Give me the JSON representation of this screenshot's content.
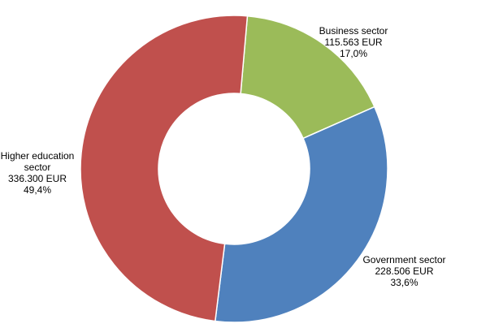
{
  "chart_data": {
    "type": "pie",
    "categories": [
      "Business sector",
      "Government sector",
      "Higher education sector"
    ],
    "values": [
      115563,
      228506,
      336300
    ],
    "value_labels": [
      "115.563 EUR",
      "228.506 EUR",
      "336.300 EUR"
    ],
    "percentages": [
      17.0,
      33.6,
      49.4
    ],
    "percentage_labels": [
      "17,0%",
      "33,6%",
      "49,4%"
    ],
    "colors": [
      "#9bbb59",
      "#4f81bd",
      "#c0504d"
    ],
    "donut": true
  }
}
